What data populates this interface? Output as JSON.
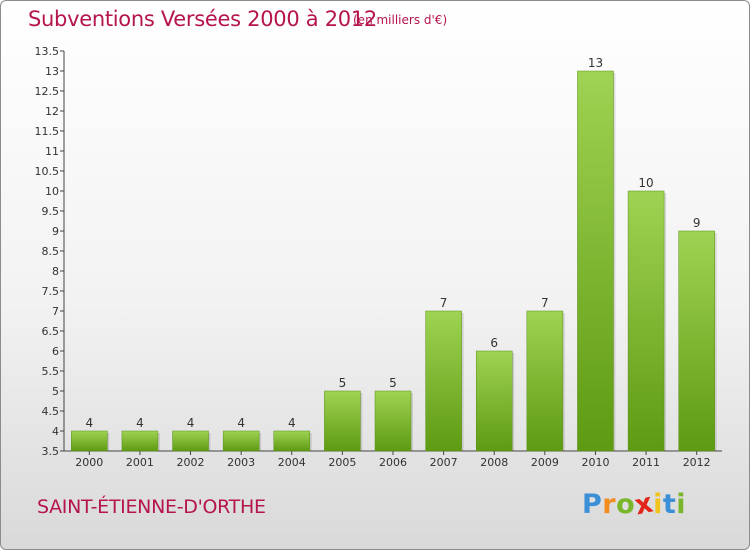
{
  "header": {
    "title": "Subventions Versées 2000 à 2012",
    "subtitle": "(en milliers d'€)"
  },
  "footer": {
    "commune": "SAINT-ÉTIENNE-D'ORTHE",
    "logo_letters": [
      {
        "char": "P",
        "color": "#3a8fd6"
      },
      {
        "char": "r",
        "color": "#f28c1e"
      },
      {
        "char": "o",
        "color": "#7ab62b"
      },
      {
        "char": "x",
        "color": "#e2241a"
      },
      {
        "char": "i",
        "color": "#f2c31e"
      },
      {
        "char": "t",
        "color": "#3a8fd6"
      },
      {
        "char": "i",
        "color": "#7ab62b"
      }
    ]
  },
  "chart_data": {
    "type": "bar",
    "categories": [
      "2000",
      "2001",
      "2002",
      "2003",
      "2004",
      "2005",
      "2006",
      "2007",
      "2008",
      "2009",
      "2010",
      "2011",
      "2012"
    ],
    "values": [
      4,
      4,
      4,
      4,
      4,
      5,
      5,
      7,
      6,
      7,
      13,
      10,
      9
    ],
    "data_labels": [
      "4",
      "4",
      "4",
      "4",
      "4",
      "5",
      "5",
      "7",
      "6",
      "7",
      "13",
      "10",
      "9"
    ],
    "ylim": [
      3.5,
      13.5
    ],
    "yticks": [
      "3.5",
      "4",
      "4.5",
      "5",
      "5.5",
      "6",
      "6.5",
      "7",
      "7.5",
      "8",
      "8.5",
      "9",
      "9.5",
      "10",
      "10.5",
      "11",
      "11.5",
      "12",
      "12.5",
      "13",
      "13.5"
    ],
    "grid": false,
    "bar_color_top": "#9fd353",
    "bar_color_bottom": "#5e9a12"
  }
}
